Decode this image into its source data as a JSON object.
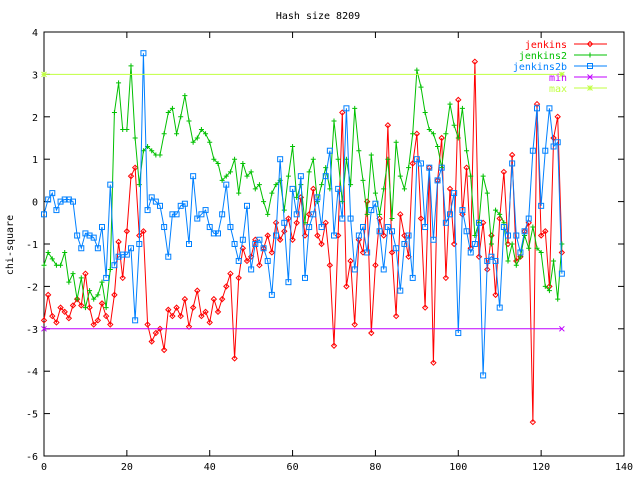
{
  "chart_data": {
    "type": "line",
    "title": "Hash size 8209",
    "xlabel": "",
    "ylabel": "chi-square",
    "xlim": [
      0,
      140
    ],
    "ylim": [
      -6,
      4
    ],
    "xticks": [
      0,
      20,
      40,
      60,
      80,
      100,
      120,
      140
    ],
    "yticks": [
      -6,
      -5,
      -4,
      -3,
      -2,
      -1,
      0,
      1,
      2,
      3,
      4
    ],
    "grid": false,
    "legend_position": "top-right",
    "series": [
      {
        "name": "jenkins",
        "color": "#ff0000",
        "marker": "diamond",
        "x": [
          0,
          1,
          2,
          3,
          4,
          5,
          6,
          7,
          8,
          9,
          10,
          11,
          12,
          13,
          14,
          15,
          16,
          17,
          18,
          19,
          20,
          21,
          22,
          23,
          24,
          25,
          26,
          27,
          28,
          29,
          30,
          31,
          32,
          33,
          34,
          35,
          36,
          37,
          38,
          39,
          40,
          41,
          42,
          43,
          44,
          45,
          46,
          47,
          48,
          49,
          50,
          51,
          52,
          53,
          54,
          55,
          56,
          57,
          58,
          59,
          60,
          61,
          62,
          63,
          64,
          65,
          66,
          67,
          68,
          69,
          70,
          71,
          72,
          73,
          74,
          75,
          76,
          77,
          78,
          79,
          80,
          81,
          82,
          83,
          84,
          85,
          86,
          87,
          88,
          89,
          90,
          91,
          92,
          93,
          94,
          95,
          96,
          97,
          98,
          99,
          100,
          101,
          102,
          103,
          104,
          105,
          106,
          107,
          108,
          109,
          110,
          111,
          112,
          113,
          114,
          115,
          116,
          117,
          118,
          119,
          120,
          121,
          122,
          123,
          124,
          125
        ],
        "values": [
          -2.8,
          -2.2,
          -2.7,
          -2.85,
          -2.5,
          -2.6,
          -2.75,
          -2.45,
          -2.3,
          -2.45,
          -1.7,
          -2.5,
          -2.9,
          -2.8,
          -2.4,
          -2.7,
          -2.9,
          -2.2,
          -0.95,
          -1.8,
          -0.7,
          0.6,
          0.8,
          -0.8,
          -0.7,
          -2.9,
          -3.3,
          -3.1,
          -3.0,
          -3.5,
          -2.55,
          -2.7,
          -2.5,
          -2.7,
          -2.3,
          -2.95,
          -2.5,
          -2.1,
          -2.7,
          -2.6,
          -2.85,
          -2.3,
          -2.6,
          -2.3,
          -2.0,
          -1.7,
          -3.7,
          -1.8,
          -1.1,
          -1.4,
          -1.3,
          -0.9,
          -1.5,
          -1.1,
          -0.8,
          -1.2,
          -0.5,
          -0.9,
          -0.7,
          -0.4,
          -0.9,
          -0.5,
          0.1,
          -0.8,
          -0.3,
          0.3,
          -0.8,
          -1.0,
          -0.5,
          -1.5,
          -3.4,
          -0.8,
          2.1,
          -2.0,
          -1.4,
          -2.9,
          -0.9,
          -1.2,
          0.0,
          -3.1,
          -1.5,
          -0.4,
          -0.8,
          1.8,
          -1.2,
          -2.7,
          -0.3,
          -0.8,
          -1.3,
          0.9,
          1.6,
          -0.4,
          -2.5,
          0.8,
          -3.8,
          0.5,
          1.5,
          -1.8,
          0.3,
          -1.0,
          2.4,
          -0.3,
          0.8,
          -1.1,
          3.3,
          -1.3,
          -0.5,
          -1.6,
          -0.8,
          -2.2,
          -0.4,
          0.7,
          -1.0,
          1.1,
          -1.4,
          -1.3,
          -0.7,
          -0.5,
          -5.2,
          2.3,
          -0.8,
          -0.7,
          -2.0,
          1.5,
          2.0,
          -1.2
        ]
      },
      {
        "name": "jenkins2",
        "color": "#00c000",
        "marker": "plus",
        "x": [
          0,
          1,
          2,
          3,
          4,
          5,
          6,
          7,
          8,
          9,
          10,
          11,
          12,
          13,
          14,
          15,
          16,
          17,
          18,
          19,
          20,
          21,
          22,
          23,
          24,
          25,
          26,
          27,
          28,
          29,
          30,
          31,
          32,
          33,
          34,
          35,
          36,
          37,
          38,
          39,
          40,
          41,
          42,
          43,
          44,
          45,
          46,
          47,
          48,
          49,
          50,
          51,
          52,
          53,
          54,
          55,
          56,
          57,
          58,
          59,
          60,
          61,
          62,
          63,
          64,
          65,
          66,
          67,
          68,
          69,
          70,
          71,
          72,
          73,
          74,
          75,
          76,
          77,
          78,
          79,
          80,
          81,
          82,
          83,
          84,
          85,
          86,
          87,
          88,
          89,
          90,
          91,
          92,
          93,
          94,
          95,
          96,
          97,
          98,
          99,
          100,
          101,
          102,
          103,
          104,
          105,
          106,
          107,
          108,
          109,
          110,
          111,
          112,
          113,
          114,
          115,
          116,
          117,
          118,
          119,
          120,
          121,
          122,
          123,
          124,
          125
        ],
        "values": [
          -1.5,
          -1.2,
          -1.35,
          -1.5,
          -1.5,
          -1.2,
          -1.9,
          -1.7,
          -2.3,
          -1.8,
          -2.5,
          -2.1,
          -2.3,
          -2.2,
          -1.9,
          -2.5,
          -1.6,
          2.1,
          2.8,
          1.7,
          1.7,
          3.2,
          1.5,
          0.4,
          1.2,
          1.3,
          1.2,
          1.1,
          1.1,
          1.6,
          2.1,
          2.2,
          1.6,
          2.0,
          2.5,
          1.9,
          1.4,
          1.5,
          1.7,
          1.6,
          1.4,
          1.0,
          0.9,
          0.5,
          0.6,
          0.7,
          1.0,
          0.2,
          0.9,
          0.6,
          0.7,
          0.3,
          0.4,
          0.0,
          -0.3,
          0.2,
          0.4,
          0.5,
          -0.2,
          0.6,
          1.3,
          0.1,
          0.4,
          -0.5,
          0.7,
          1.0,
          0.0,
          0.4,
          0.8,
          0.3,
          1.9,
          1.0,
          0.0,
          1.0,
          0.4,
          2.2,
          1.2,
          0.5,
          -0.3,
          1.1,
          0.2,
          -0.3,
          0.3,
          1.0,
          -0.4,
          1.4,
          0.6,
          0.3,
          0.8,
          1.6,
          3.1,
          2.7,
          2.1,
          1.7,
          1.6,
          1.3,
          0.8,
          1.6,
          2.3,
          1.8,
          1.5,
          2.2,
          1.2,
          0.6,
          -0.8,
          -0.5,
          0.6,
          0.2,
          -1.0,
          -0.2,
          -0.3,
          -0.5,
          -1.4,
          -1.0,
          -1.5,
          -1.3,
          -0.8,
          -1.1,
          -0.6,
          -1.1,
          -1.2,
          -2.0,
          -2.1,
          -1.4,
          -2.3,
          -1.0
        ]
      },
      {
        "name": "jenkins2b",
        "color": "#0080ff",
        "marker": "square",
        "x": [
          0,
          1,
          2,
          3,
          4,
          5,
          6,
          7,
          8,
          9,
          10,
          11,
          12,
          13,
          14,
          15,
          16,
          17,
          18,
          19,
          20,
          21,
          22,
          23,
          24,
          25,
          26,
          27,
          28,
          29,
          30,
          31,
          32,
          33,
          34,
          35,
          36,
          37,
          38,
          39,
          40,
          41,
          42,
          43,
          44,
          45,
          46,
          47,
          48,
          49,
          50,
          51,
          52,
          53,
          54,
          55,
          56,
          57,
          58,
          59,
          60,
          61,
          62,
          63,
          64,
          65,
          66,
          67,
          68,
          69,
          70,
          71,
          72,
          73,
          74,
          75,
          76,
          77,
          78,
          79,
          80,
          81,
          82,
          83,
          84,
          85,
          86,
          87,
          88,
          89,
          90,
          91,
          92,
          93,
          94,
          95,
          96,
          97,
          98,
          99,
          100,
          101,
          102,
          103,
          104,
          105,
          106,
          107,
          108,
          109,
          110,
          111,
          112,
          113,
          114,
          115,
          116,
          117,
          118,
          119,
          120,
          121,
          122,
          123,
          124,
          125
        ],
        "values": [
          -0.3,
          0.05,
          0.2,
          -0.2,
          0.0,
          0.05,
          0.05,
          0.0,
          -0.8,
          -1.1,
          -0.75,
          -0.8,
          -0.85,
          -1.1,
          -0.6,
          -1.8,
          0.4,
          -1.5,
          -1.3,
          -1.25,
          -1.25,
          -1.1,
          -2.8,
          -1.0,
          3.5,
          -0.2,
          0.1,
          0.0,
          -0.1,
          -0.6,
          -1.3,
          -0.3,
          -0.3,
          -0.1,
          -0.05,
          -1.0,
          0.6,
          -0.4,
          -0.3,
          -0.2,
          -0.6,
          -0.75,
          -0.75,
          -0.3,
          0.4,
          -0.6,
          -1.0,
          -1.4,
          -0.9,
          -0.1,
          -1.6,
          -1.0,
          -0.9,
          -1.1,
          -1.4,
          -2.2,
          -0.8,
          1.0,
          -0.5,
          -1.9,
          0.3,
          -0.3,
          0.6,
          -1.8,
          -0.6,
          -0.3,
          0.1,
          -0.6,
          0.6,
          1.2,
          -0.8,
          0.3,
          -0.4,
          2.2,
          -0.4,
          -1.6,
          -0.8,
          -0.6,
          -1.2,
          -0.2,
          -0.05,
          -0.7,
          -1.6,
          -0.6,
          -0.7,
          -1.1,
          -2.1,
          -1.0,
          -0.8,
          -1.8,
          1.0,
          0.9,
          -0.6,
          0.8,
          -0.9,
          0.5,
          0.8,
          -0.5,
          -0.3,
          0.2,
          -3.1,
          -0.2,
          -0.7,
          -1.2,
          -1.0,
          -0.5,
          -4.1,
          -1.4,
          -1.3,
          -1.4,
          -2.5,
          -0.6,
          -0.8,
          0.9,
          -0.8,
          -1.2,
          -0.7,
          -0.4,
          1.2,
          2.2,
          -0.1,
          1.2,
          2.2,
          1.3,
          1.4,
          -1.7
        ]
      },
      {
        "name": "min",
        "color": "#c000ff",
        "marker": "cross",
        "x": [
          0,
          125
        ],
        "values": [
          -3,
          -3
        ]
      },
      {
        "name": "max",
        "color": "#c0ff40",
        "marker": "star",
        "x": [
          0,
          125
        ],
        "values": [
          3,
          3
        ]
      }
    ]
  }
}
